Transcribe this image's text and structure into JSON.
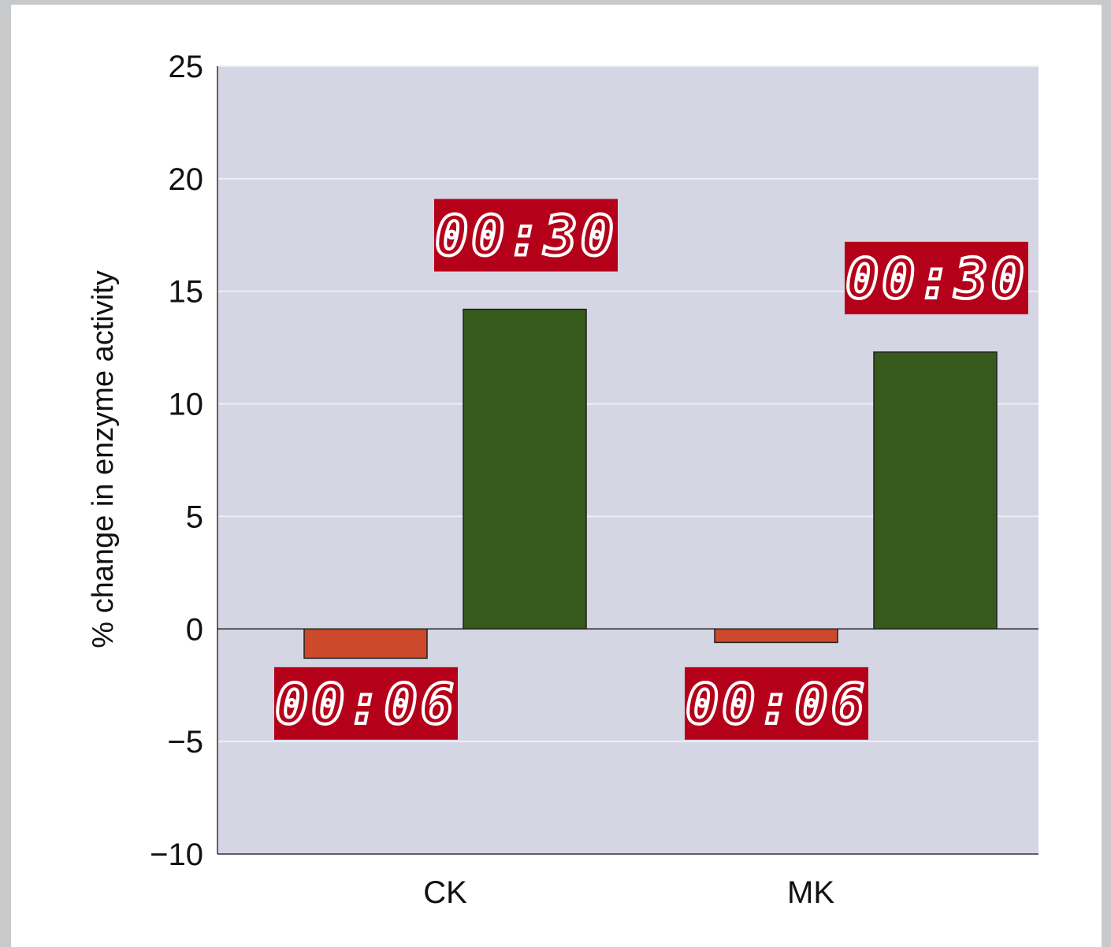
{
  "chart_data": {
    "type": "bar",
    "ylabel": "% change in enzyme activity",
    "xlabel": "",
    "ylim": [
      -10,
      25
    ],
    "yticks": [
      25,
      20,
      15,
      10,
      5,
      0,
      -5,
      -10
    ],
    "grid": true,
    "categories": [
      "CK",
      "MK"
    ],
    "series": [
      {
        "values": [
          -1.3,
          -0.6
        ],
        "color": "#cc4a2b",
        "annotation": "00:06",
        "annotation_position": "below"
      },
      {
        "values": [
          14.2,
          12.3
        ],
        "color": "#365a1b",
        "annotation": "00:30",
        "annotation_position": "above"
      }
    ],
    "colors": {
      "plot_background": "#d5d6e3",
      "grid": "#eceef6",
      "annotation_box": "#b5001a",
      "annotation_text": "#ffffff"
    }
  }
}
